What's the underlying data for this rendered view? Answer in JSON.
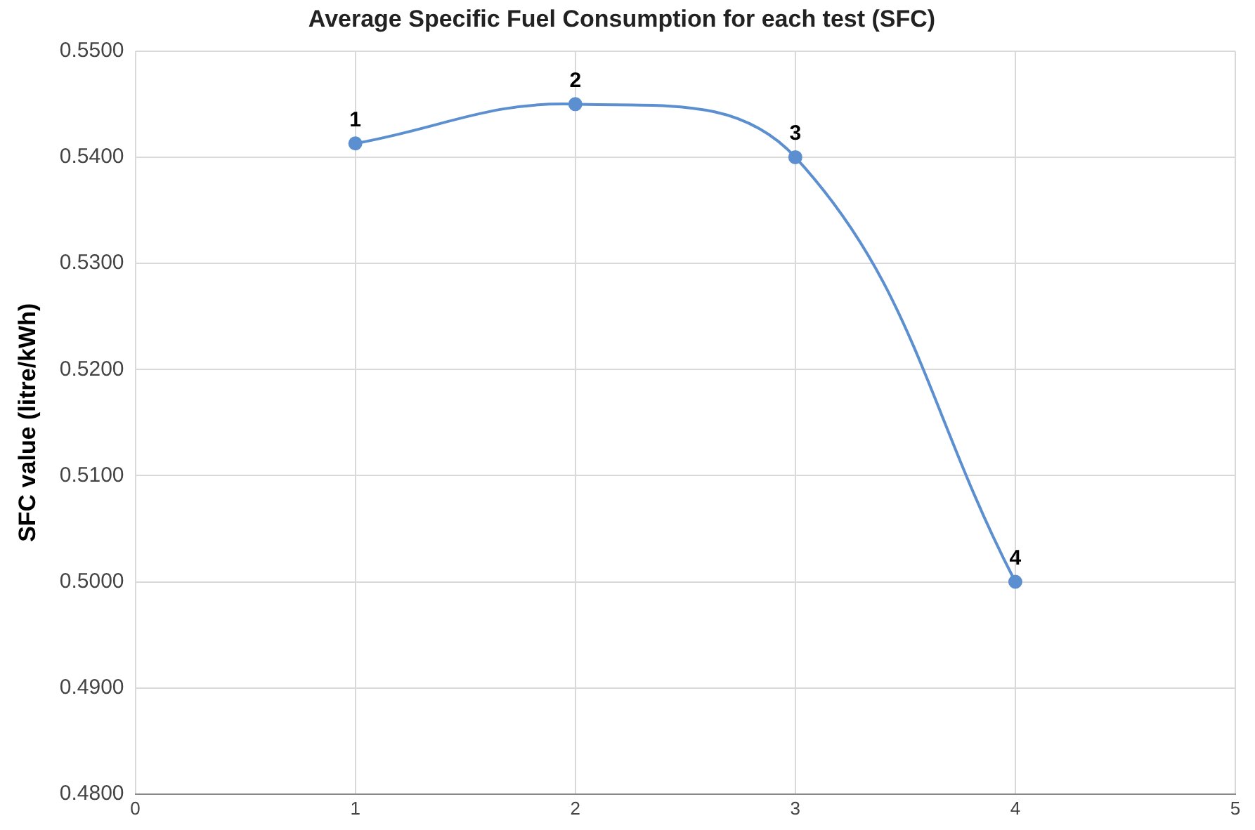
{
  "chart_data": {
    "type": "line",
    "title": "Average Specific Fuel Consumption for each test (SFC)",
    "ylabel": "SFC value (litre/kWh)",
    "x": [
      1,
      2,
      3,
      4
    ],
    "series": [
      {
        "color": "#5b8fd0",
        "values": [
          0.5413,
          0.545,
          0.54,
          0.5
        ]
      }
    ],
    "xlim": [
      0,
      5
    ],
    "xticks": [
      0,
      1,
      2,
      3,
      4,
      5
    ],
    "ylim": [
      0.48,
      0.55
    ],
    "yticks": [
      {
        "value": 0.48,
        "label": "0.4800"
      },
      {
        "value": 0.49,
        "label": "0.4900"
      },
      {
        "value": 0.5,
        "label": "0.5000"
      },
      {
        "value": 0.51,
        "label": "0.5100"
      },
      {
        "value": 0.52,
        "label": "0.5200"
      },
      {
        "value": 0.53,
        "label": "0.5300"
      },
      {
        "value": 0.54,
        "label": "0.5400"
      },
      {
        "value": 0.55,
        "label": "0.5500"
      }
    ],
    "grid": true,
    "legend": false,
    "marker": "circle",
    "line_style": "solid",
    "annotations": [
      {
        "text": "1",
        "x": 1,
        "y": 0.5413
      },
      {
        "text": "2",
        "x": 2,
        "y": 0.545
      },
      {
        "text": "3",
        "x": 3,
        "y": 0.54
      },
      {
        "text": "4",
        "x": 4,
        "y": 0.5
      }
    ]
  }
}
